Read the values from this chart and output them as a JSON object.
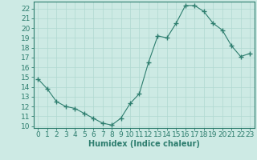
{
  "x": [
    0,
    1,
    2,
    3,
    4,
    5,
    6,
    7,
    8,
    9,
    10,
    11,
    12,
    13,
    14,
    15,
    16,
    17,
    18,
    19,
    20,
    21,
    22,
    23
  ],
  "y": [
    14.8,
    13.8,
    12.5,
    12.0,
    11.8,
    11.3,
    10.8,
    10.3,
    10.1,
    10.8,
    12.3,
    13.3,
    16.5,
    19.2,
    19.0,
    20.5,
    22.3,
    22.3,
    21.7,
    20.5,
    19.8,
    18.2,
    17.1,
    17.4
  ],
  "xlabel": "Humidex (Indice chaleur)",
  "ylabel": "",
  "ylim": [
    9.8,
    22.7
  ],
  "xlim": [
    -0.5,
    23.5
  ],
  "yticks": [
    10,
    11,
    12,
    13,
    14,
    15,
    16,
    17,
    18,
    19,
    20,
    21,
    22
  ],
  "xticks": [
    0,
    1,
    2,
    3,
    4,
    5,
    6,
    7,
    8,
    9,
    10,
    11,
    12,
    13,
    14,
    15,
    16,
    17,
    18,
    19,
    20,
    21,
    22,
    23
  ],
  "line_color": "#2d7d6e",
  "marker": "+",
  "marker_size": 4,
  "bg_color": "#cdeae4",
  "grid_color": "#b0d8d0",
  "axes_color": "#2d7d6e",
  "label_color": "#2d7d6e",
  "tick_color": "#2d7d6e",
  "xlabel_fontsize": 7,
  "tick_fontsize": 6.5
}
